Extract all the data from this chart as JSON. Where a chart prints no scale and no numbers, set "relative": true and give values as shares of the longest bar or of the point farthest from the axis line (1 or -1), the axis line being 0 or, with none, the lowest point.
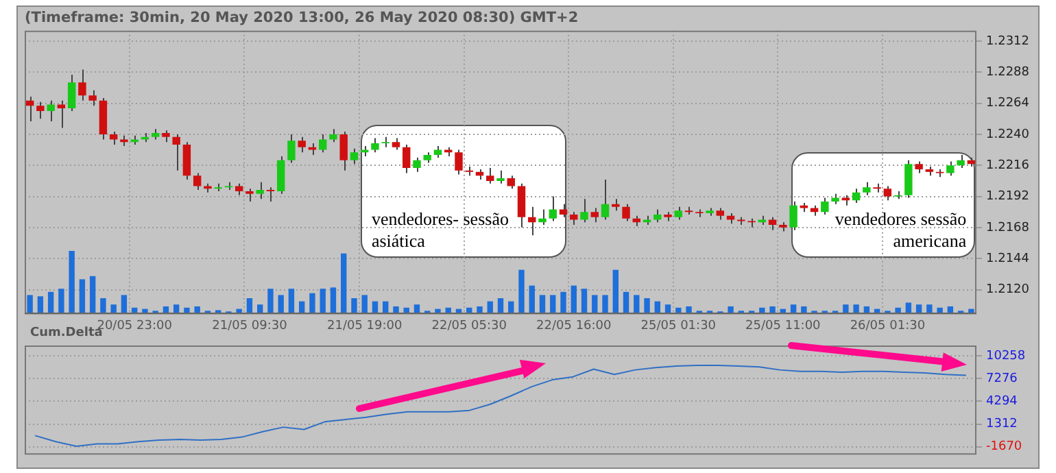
{
  "chart_data": [
    {
      "type": "candlestick",
      "title": "(Timeframe: 30min, 20 May 2020 13:00, 26 May 2020 08:30) GMT+2",
      "categories": [
        null,
        null,
        null,
        null,
        null,
        null,
        null,
        null,
        null,
        null,
        "20/05 23:00",
        null,
        null,
        null,
        null,
        null,
        null,
        null,
        null,
        null,
        null,
        "21/05 09:30",
        null,
        null,
        null,
        null,
        null,
        null,
        null,
        null,
        null,
        null,
        "21/05 19:00",
        null,
        null,
        null,
        null,
        null,
        null,
        null,
        null,
        null,
        "22/05 05:30",
        null,
        null,
        null,
        null,
        null,
        null,
        null,
        null,
        null,
        "22/05 16:00",
        null,
        null,
        null,
        null,
        null,
        null,
        null,
        null,
        null,
        "25/05 01:30",
        null,
        null,
        null,
        null,
        null,
        null,
        null,
        null,
        null,
        "25/05 11:00",
        null,
        null,
        null,
        null,
        null,
        null,
        null,
        null,
        null,
        "26/05 01:30",
        null,
        null,
        null,
        null,
        null,
        null,
        null,
        null
      ],
      "ohlc": [
        [
          1.2266,
          1.2269,
          1.225,
          1.2262
        ],
        [
          1.2262,
          1.2265,
          1.2252,
          1.2258
        ],
        [
          1.2258,
          1.2266,
          1.225,
          1.2263
        ],
        [
          1.2263,
          1.2266,
          1.2245,
          1.226
        ],
        [
          1.226,
          1.2286,
          1.2258,
          1.228
        ],
        [
          1.228,
          1.229,
          1.2266,
          1.227
        ],
        [
          1.227,
          1.2274,
          1.2262,
          1.2266
        ],
        [
          1.2266,
          1.2268,
          1.2236,
          1.224
        ],
        [
          1.224,
          1.2242,
          1.2232,
          1.2236
        ],
        [
          1.2236,
          1.2239,
          1.2231,
          1.2234
        ],
        [
          1.2234,
          1.2239,
          1.2232,
          1.2236
        ],
        [
          1.2236,
          1.2241,
          1.2234,
          1.2238
        ],
        [
          1.2238,
          1.2244,
          1.2236,
          1.2241
        ],
        [
          1.2241,
          1.2243,
          1.2234,
          1.2238
        ],
        [
          1.2238,
          1.224,
          1.2212,
          1.2232
        ],
        [
          1.2232,
          1.2234,
          1.2205,
          1.2208
        ],
        [
          1.2208,
          1.221,
          1.2197,
          1.22
        ],
        [
          1.22,
          1.2202,
          1.2195,
          1.2198
        ],
        [
          1.2198,
          1.2202,
          1.2196,
          1.2199
        ],
        [
          1.2199,
          1.2203,
          1.2197,
          1.22
        ],
        [
          1.22,
          1.2202,
          1.2193,
          1.2196
        ],
        [
          1.2196,
          1.2198,
          1.2188,
          1.2194
        ],
        [
          1.2194,
          1.2203,
          1.219,
          1.2197
        ],
        [
          1.2197,
          1.2199,
          1.2188,
          1.2196
        ],
        [
          1.2196,
          1.2223,
          1.2194,
          1.222
        ],
        [
          1.222,
          1.224,
          1.2218,
          1.2235
        ],
        [
          1.2235,
          1.2238,
          1.2226,
          1.223
        ],
        [
          1.223,
          1.2233,
          1.2224,
          1.2228
        ],
        [
          1.2228,
          1.224,
          1.2226,
          1.2236
        ],
        [
          1.2236,
          1.2244,
          1.2234,
          1.224
        ],
        [
          1.224,
          1.2242,
          1.2212,
          1.222
        ],
        [
          1.222,
          1.2229,
          1.2217,
          1.2226
        ],
        [
          1.2226,
          1.2231,
          1.2223,
          1.2228
        ],
        [
          1.2228,
          1.2237,
          1.2226,
          1.2233
        ],
        [
          1.2233,
          1.2238,
          1.223,
          1.2234
        ],
        [
          1.2234,
          1.2237,
          1.2228,
          1.223
        ],
        [
          1.223,
          1.2232,
          1.221,
          1.2214
        ],
        [
          1.2214,
          1.2222,
          1.2211,
          1.222
        ],
        [
          1.222,
          1.2226,
          1.2218,
          1.2224
        ],
        [
          1.2224,
          1.2231,
          1.2222,
          1.2228
        ],
        [
          1.2228,
          1.223,
          1.2223,
          1.2226
        ],
        [
          1.2226,
          1.2228,
          1.2209,
          1.2212
        ],
        [
          1.2212,
          1.2215,
          1.2208,
          1.2211
        ],
        [
          1.2211,
          1.2213,
          1.2205,
          1.2208
        ],
        [
          1.2208,
          1.2214,
          1.2202,
          1.2204
        ],
        [
          1.2204,
          1.2212,
          1.2202,
          1.2206
        ],
        [
          1.2206,
          1.2208,
          1.2198,
          1.22
        ],
        [
          1.22,
          1.2202,
          1.2168,
          1.2176
        ],
        [
          1.2176,
          1.2184,
          1.2162,
          1.2172
        ],
        [
          1.2172,
          1.2182,
          1.217,
          1.2175
        ],
        [
          1.2175,
          1.2192,
          1.2173,
          1.2182
        ],
        [
          1.2182,
          1.2186,
          1.2176,
          1.2178
        ],
        [
          1.2178,
          1.218,
          1.217,
          1.2174
        ],
        [
          1.2174,
          1.219,
          1.2172,
          1.218
        ],
        [
          1.218,
          1.2183,
          1.2172,
          1.2176
        ],
        [
          1.2176,
          1.2205,
          1.2174,
          1.2186
        ],
        [
          1.2186,
          1.219,
          1.2181,
          1.2184
        ],
        [
          1.2184,
          1.2186,
          1.2173,
          1.2175
        ],
        [
          1.2175,
          1.2177,
          1.2169,
          1.2172
        ],
        [
          1.2172,
          1.2177,
          1.217,
          1.2174
        ],
        [
          1.2174,
          1.2182,
          1.2172,
          1.2178
        ],
        [
          1.2178,
          1.218,
          1.2173,
          1.2176
        ],
        [
          1.2176,
          1.2184,
          1.2174,
          1.2181
        ],
        [
          1.2181,
          1.2184,
          1.2178,
          1.218
        ],
        [
          1.218,
          1.2182,
          1.2176,
          1.2179
        ],
        [
          1.2179,
          1.2183,
          1.2177,
          1.2181
        ],
        [
          1.2181,
          1.2183,
          1.2174,
          1.2177
        ],
        [
          1.2177,
          1.2179,
          1.2171,
          1.2174
        ],
        [
          1.2174,
          1.2176,
          1.217,
          1.2173
        ],
        [
          1.2173,
          1.2175,
          1.2168,
          1.2172
        ],
        [
          1.2172,
          1.2177,
          1.217,
          1.2174
        ],
        [
          1.2174,
          1.2176,
          1.2166,
          1.217
        ],
        [
          1.217,
          1.2172,
          1.2165,
          1.2168
        ],
        [
          1.2168,
          1.2188,
          1.2166,
          1.2185
        ],
        [
          1.2185,
          1.2187,
          1.218,
          1.2183
        ],
        [
          1.2183,
          1.2185,
          1.2177,
          1.218
        ],
        [
          1.218,
          1.2191,
          1.2178,
          1.2188
        ],
        [
          1.2188,
          1.2194,
          1.2186,
          1.2191
        ],
        [
          1.2191,
          1.2193,
          1.2185,
          1.2189
        ],
        [
          1.2189,
          1.2198,
          1.2187,
          1.2195
        ],
        [
          1.2195,
          1.2203,
          1.2193,
          1.2199
        ],
        [
          1.2199,
          1.2202,
          1.2195,
          1.2198
        ],
        [
          1.2198,
          1.22,
          1.2189,
          1.2192
        ],
        [
          1.2192,
          1.2196,
          1.219,
          1.2193
        ],
        [
          1.2193,
          1.222,
          1.2191,
          1.2217
        ],
        [
          1.2217,
          1.2219,
          1.221,
          1.2213
        ],
        [
          1.2213,
          1.2215,
          1.2208,
          1.2211
        ],
        [
          1.2211,
          1.2213,
          1.2207,
          1.221
        ],
        [
          1.221,
          1.2219,
          1.2208,
          1.2216
        ],
        [
          1.2216,
          1.2224,
          1.2214,
          1.222
        ],
        [
          1.222,
          1.2222,
          1.2215,
          1.2217
        ]
      ],
      "ylim": [
        1.2101,
        1.232
      ],
      "yticks": [
        {
          "value": 1.212,
          "label": "1.2120"
        },
        {
          "value": 1.2144,
          "label": "1.2144"
        },
        {
          "value": 1.2168,
          "label": "1.2168"
        },
        {
          "value": 1.2192,
          "label": "1.2192"
        },
        {
          "value": 1.2216,
          "label": "1.2216"
        },
        {
          "value": 1.224,
          "label": "1.2240"
        },
        {
          "value": 1.2264,
          "label": "1.2264"
        },
        {
          "value": 1.2288,
          "label": "1.2288"
        },
        {
          "value": 1.2312,
          "label": "1.2312"
        }
      ],
      "grid": true,
      "legend": false,
      "annotations": [
        "vendedores- sessão asiática",
        "vendedores sessão americana"
      ]
    },
    {
      "type": "bar",
      "relative": true,
      "tick_labels": false,
      "color": "#1e6fd9",
      "categories": [
        null,
        null,
        null,
        null,
        null,
        null,
        null,
        null,
        null,
        null,
        null,
        null,
        null,
        null,
        null,
        null,
        null,
        null,
        null,
        null,
        null,
        null,
        null,
        null,
        null,
        null,
        null,
        null,
        null,
        null,
        null,
        null,
        null,
        null,
        null,
        null,
        null,
        null,
        null,
        null,
        null,
        null,
        null,
        null,
        null,
        null,
        null,
        null,
        null,
        null,
        null,
        null,
        null,
        null,
        null,
        null,
        null,
        null,
        null,
        null,
        null,
        null,
        null,
        null,
        null,
        null,
        null,
        null,
        null,
        null,
        null,
        null,
        null,
        null,
        null,
        null,
        null,
        null,
        null,
        null,
        null,
        null,
        null,
        null,
        null,
        null,
        null,
        null,
        null,
        null,
        null
      ],
      "values": [
        0.3,
        0.28,
        0.35,
        0.4,
        1.0,
        0.55,
        0.6,
        0.25,
        0.15,
        0.3,
        0.1,
        0.08,
        0.05,
        0.12,
        0.15,
        0.1,
        0.12,
        0.05,
        0.06,
        0.04,
        0.08,
        0.25,
        0.15,
        0.4,
        0.3,
        0.4,
        0.2,
        0.33,
        0.4,
        0.42,
        0.96,
        0.25,
        0.3,
        0.2,
        0.2,
        0.12,
        0.1,
        0.15,
        0.05,
        0.08,
        0.1,
        0.08,
        0.1,
        0.12,
        0.2,
        0.25,
        0.2,
        0.7,
        0.45,
        0.3,
        0.3,
        0.35,
        0.45,
        0.4,
        0.3,
        0.3,
        0.7,
        0.35,
        0.3,
        0.25,
        0.2,
        0.15,
        0.1,
        0.12,
        0.05,
        0.05,
        0.04,
        0.12,
        0.05,
        0.05,
        0.1,
        0.12,
        0.08,
        0.15,
        0.12,
        0.05,
        0.05,
        0.05,
        0.15,
        0.15,
        0.12,
        0.08,
        0.05,
        0.1,
        0.18,
        0.15,
        0.15,
        0.1,
        0.12,
        0.05,
        0.08
      ]
    },
    {
      "type": "line",
      "title": "Cum.Delta",
      "tick_labels": "y",
      "grid": "y",
      "marker": "none",
      "color": "#2f6fc4",
      "categories": [
        null,
        null,
        null,
        null,
        null,
        null,
        null,
        null,
        null,
        null,
        null,
        null,
        null,
        null,
        null,
        null,
        null,
        null,
        null,
        null,
        null,
        null,
        null,
        null,
        null,
        null,
        null,
        null,
        null,
        null,
        null,
        null,
        null,
        null,
        null,
        null,
        null,
        null,
        null,
        null,
        null,
        null,
        null,
        null,
        null,
        null
      ],
      "values": [
        -200,
        -1000,
        -1600,
        -1300,
        -1300,
        -1000,
        -800,
        -700,
        -800,
        -700,
        -400,
        300,
        900,
        600,
        1600,
        1900,
        2200,
        2600,
        2900,
        2900,
        2900,
        3100,
        3900,
        5000,
        6200,
        7100,
        7500,
        8500,
        7800,
        8400,
        8700,
        8900,
        9000,
        9000,
        8900,
        8800,
        8400,
        8200,
        8200,
        8100,
        8200,
        8200,
        8100,
        8000,
        7800,
        7700
      ],
      "ylim": [
        -2700,
        11600
      ],
      "yticks": [
        -1670,
        1312,
        4294,
        7276,
        10258
      ]
    }
  ]
}
